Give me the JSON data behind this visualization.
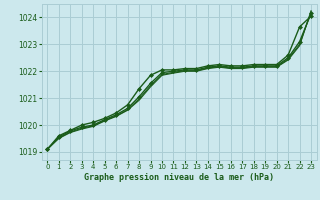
{
  "bg_color": "#cce8ed",
  "grid_color": "#aacdd4",
  "line_color": "#1a5c1a",
  "title": "Graphe pression niveau de la mer (hPa)",
  "xlim": [
    -0.5,
    23.5
  ],
  "ylim": [
    1018.7,
    1024.5
  ],
  "yticks": [
    1019,
    1020,
    1021,
    1022,
    1023,
    1024
  ],
  "xticks": [
    0,
    1,
    2,
    3,
    4,
    5,
    6,
    7,
    8,
    9,
    10,
    11,
    12,
    13,
    14,
    15,
    16,
    17,
    18,
    19,
    20,
    21,
    22,
    23
  ],
  "series": [
    {
      "x": [
        0,
        1,
        2,
        3,
        4,
        5,
        6,
        7,
        8,
        9,
        10,
        11,
        12,
        13,
        14,
        15,
        16,
        17,
        18,
        19,
        20,
        21,
        22,
        23
      ],
      "y": [
        1019.1,
        1019.6,
        1019.8,
        1020.0,
        1020.1,
        1020.25,
        1020.45,
        1020.75,
        1021.35,
        1021.85,
        1022.05,
        1022.05,
        1022.1,
        1022.1,
        1022.2,
        1022.25,
        1022.2,
        1022.2,
        1022.25,
        1022.25,
        1022.25,
        1022.6,
        1023.65,
        1024.05
      ],
      "marker": true,
      "lw": 1.0
    },
    {
      "x": [
        0,
        1,
        2,
        3,
        4,
        5,
        6,
        7,
        8,
        9,
        10,
        11,
        12,
        13,
        14,
        15,
        16,
        17,
        18,
        19,
        20,
        21,
        22,
        23
      ],
      "y": [
        1019.1,
        1019.55,
        1019.78,
        1019.92,
        1020.0,
        1020.2,
        1020.38,
        1020.62,
        1021.05,
        1021.55,
        1021.95,
        1022.0,
        1022.05,
        1022.05,
        1022.15,
        1022.2,
        1022.15,
        1022.15,
        1022.2,
        1022.2,
        1022.2,
        1022.5,
        1023.1,
        1024.15
      ],
      "marker": true,
      "lw": 1.0
    },
    {
      "x": [
        0,
        1,
        2,
        3,
        4,
        5,
        6,
        7,
        8,
        9,
        10,
        11,
        12,
        13,
        14,
        15,
        16,
        17,
        18,
        19,
        20,
        21,
        22,
        23
      ],
      "y": [
        1019.1,
        1019.52,
        1019.74,
        1019.88,
        1019.97,
        1020.17,
        1020.34,
        1020.57,
        1020.97,
        1021.47,
        1021.88,
        1021.96,
        1022.02,
        1022.02,
        1022.12,
        1022.17,
        1022.12,
        1022.12,
        1022.17,
        1022.17,
        1022.17,
        1022.45,
        1023.0,
        1024.2
      ],
      "marker": false,
      "lw": 0.8
    },
    {
      "x": [
        0,
        1,
        2,
        3,
        4,
        5,
        6,
        7,
        8,
        9,
        10,
        11,
        12,
        13,
        14,
        15,
        16,
        17,
        18,
        19,
        20,
        21,
        22,
        23
      ],
      "y": [
        1019.1,
        1019.5,
        1019.72,
        1019.85,
        1019.95,
        1020.15,
        1020.32,
        1020.55,
        1020.92,
        1021.42,
        1021.85,
        1021.93,
        1022.0,
        1022.0,
        1022.1,
        1022.15,
        1022.1,
        1022.1,
        1022.15,
        1022.15,
        1022.15,
        1022.42,
        1022.95,
        1024.25
      ],
      "marker": false,
      "lw": 0.8
    }
  ]
}
